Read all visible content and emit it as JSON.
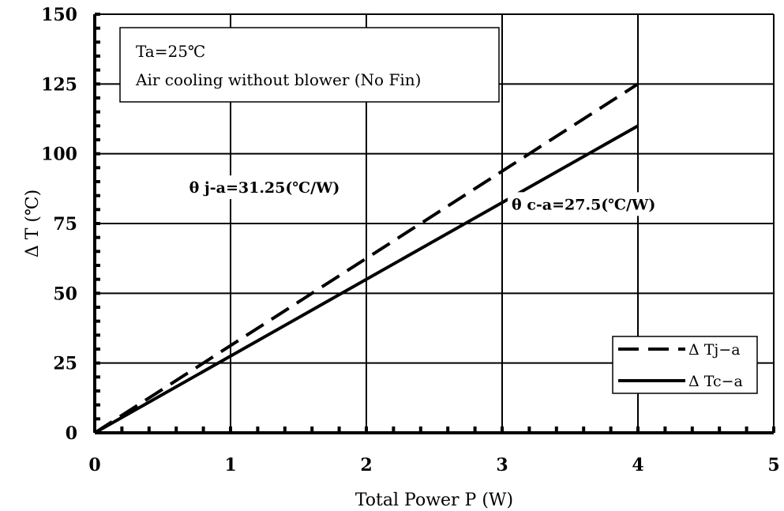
{
  "chart_data": {
    "type": "line",
    "xlabel": "Total Power P (W)",
    "ylabel": "Δ T (℃)",
    "xlim": [
      0,
      5
    ],
    "ylim": [
      0,
      150
    ],
    "x_ticks": [
      0,
      1,
      2,
      3,
      4,
      5
    ],
    "y_ticks": [
      0,
      25,
      50,
      75,
      100,
      125,
      150
    ],
    "grid": true,
    "legend_position": "bottom-right",
    "series": [
      {
        "name": "Δ Tj−a",
        "style": "dashed",
        "color": "#000000",
        "x": [
          0,
          4
        ],
        "y": [
          0,
          125
        ]
      },
      {
        "name": "Δ Tc−a",
        "style": "solid",
        "color": "#000000",
        "x": [
          0,
          4
        ],
        "y": [
          0,
          110
        ]
      }
    ],
    "annotations": [
      {
        "text": "θ j-a=31.25(℃/W)",
        "x": 1.25,
        "y": 86
      },
      {
        "text": "θ c-a=27.5(℃/W)",
        "x": 3.6,
        "y": 80
      }
    ],
    "note_box": {
      "lines": [
        "Ta=25℃",
        "Air cooling without blower (No Fin)"
      ]
    }
  }
}
